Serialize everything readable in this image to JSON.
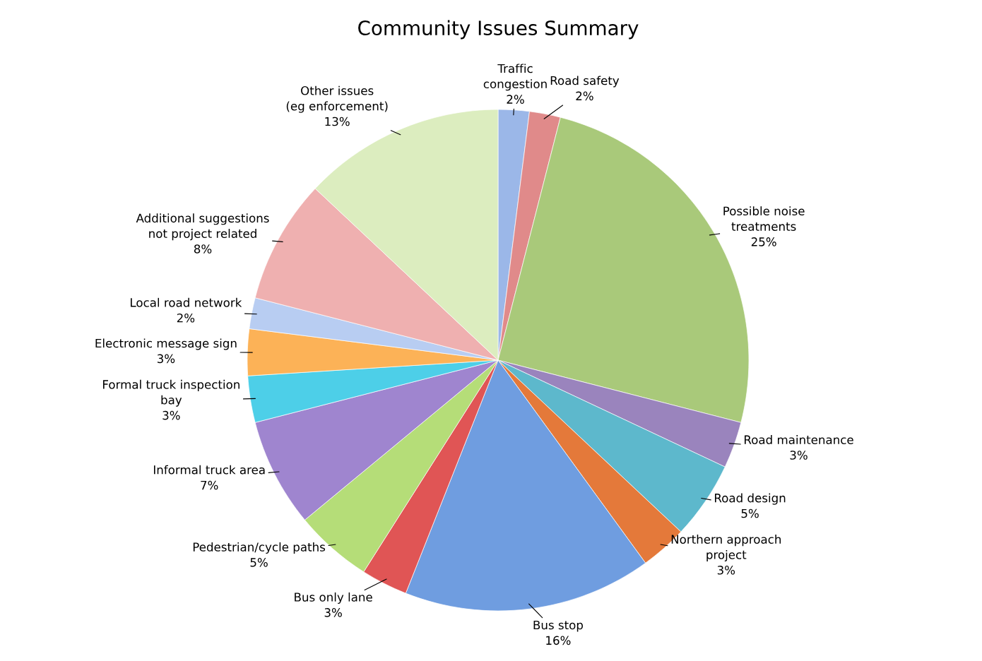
{
  "chart_data": {
    "type": "pie",
    "title": "Community Issues Summary",
    "categories": [
      "Traffic\ncongestion",
      "Road safety",
      "Possible noise\ntreatments",
      "Road maintenance",
      "Road design",
      "Northern approach\nproject",
      "Bus stop",
      "Bus only lane",
      "Pedestrian/cycle paths",
      "Informal truck area",
      "Formal truck inspection\nbay",
      "Electronic message sign",
      "Local road network",
      "Additional suggestions\nnot project related",
      "Other issues\n(eg enforcement)"
    ],
    "values": [
      2,
      2,
      25,
      3,
      5,
      3,
      16,
      3,
      5,
      7,
      3,
      3,
      2,
      8,
      13
    ],
    "value_labels": [
      "2%",
      "2%",
      "25%",
      "3%",
      "5%",
      "3%",
      "16%",
      "3%",
      "5%",
      "7%",
      "3%",
      "3%",
      "2%",
      "8%",
      "13%"
    ],
    "colors": [
      "#9bb7e8",
      "#e08a8a",
      "#a9c97a",
      "#9a84bd",
      "#5db8cc",
      "#e4793a",
      "#6f9de0",
      "#e05555",
      "#b5dd78",
      "#9f85cf",
      "#4dcfe8",
      "#fcb257",
      "#b8cdf2",
      "#efb0b0",
      "#dcedbf"
    ],
    "legend": false
  }
}
